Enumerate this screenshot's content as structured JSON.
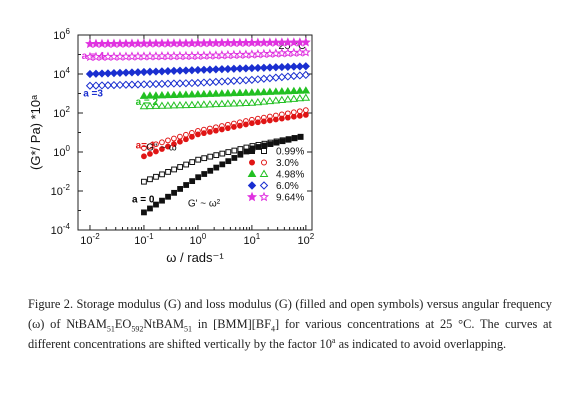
{
  "chart_data": {
    "type": "scatter",
    "xlabel": "ω / rads⁻¹",
    "ylabel": "(G*/ Pa) *10ᵃ",
    "x_scale": "log",
    "y_scale": "log",
    "xlim": [
      0.006,
      130
    ],
    "ylim": [
      0.0001,
      1000000
    ],
    "x_ticks": [
      {
        "value": 0.01,
        "base": "10",
        "exp": "-2"
      },
      {
        "value": 0.1,
        "base": "10",
        "exp": "-1"
      },
      {
        "value": 1,
        "base": "10",
        "exp": "0"
      },
      {
        "value": 10,
        "base": "10",
        "exp": "1"
      },
      {
        "value": 100,
        "base": "10",
        "exp": "2"
      }
    ],
    "y_ticks": [
      {
        "value": 0.0001,
        "base": "10",
        "exp": "-4"
      },
      {
        "value": 0.01,
        "base": "10",
        "exp": "-2"
      },
      {
        "value": 1,
        "base": "10",
        "exp": "0"
      },
      {
        "value": 100,
        "base": "10",
        "exp": "2"
      },
      {
        "value": 10000,
        "base": "10",
        "exp": "4"
      },
      {
        "value": 1000000,
        "base": "10",
        "exp": "6"
      }
    ],
    "temperature_label": "25 °C",
    "slope_labels": {
      "gp": "G\" ~ ω",
      "gpp": "G' ~ ω²"
    },
    "shift_labels": [
      {
        "text": "a = 4",
        "x": 0.007,
        "y": 60000,
        "color": "#e032e0"
      },
      {
        "text": "a =3",
        "x": 0.0075,
        "y": 700,
        "color": "#1a2fd0"
      },
      {
        "text": "a = 2",
        "x": 0.07,
        "y": 250,
        "color": "#22c022"
      },
      {
        "text": "a= 1",
        "x": 0.07,
        "y": 1.5,
        "color": "#e01515"
      },
      {
        "text": "a = 0",
        "x": 0.06,
        "y": 0.0025,
        "color": "#000000"
      }
    ],
    "series": [
      {
        "name": "0.99%",
        "color": "#111111",
        "marker": "square",
        "x_start": 0.1,
        "x_end": 80,
        "gprime": [
          [
            0.1,
            0.0008
          ],
          [
            1,
            0.05
          ],
          [
            10,
            1.5
          ],
          [
            80,
            6
          ]
        ],
        "gdoubleprime": [
          [
            0.1,
            0.03
          ],
          [
            1,
            0.4
          ],
          [
            10,
            2
          ],
          [
            80,
            6
          ]
        ]
      },
      {
        "name": "3.0%",
        "color": "#e01515",
        "marker": "circle",
        "x_start": 0.1,
        "x_end": 100,
        "gprime": [
          [
            0.1,
            0.6
          ],
          [
            1,
            8
          ],
          [
            10,
            30
          ],
          [
            100,
            80
          ]
        ],
        "gdoubleprime": [
          [
            0.1,
            1.6
          ],
          [
            1,
            12
          ],
          [
            10,
            45
          ],
          [
            100,
            140
          ]
        ]
      },
      {
        "name": "4.98%",
        "color": "#22c022",
        "marker": "triangle",
        "x_start": 0.1,
        "x_end": 100,
        "gprime": [
          [
            0.1,
            750
          ],
          [
            1,
            900
          ],
          [
            10,
            1100
          ],
          [
            100,
            1400
          ]
        ],
        "gdoubleprime": [
          [
            0.1,
            220
          ],
          [
            1,
            260
          ],
          [
            10,
            330
          ],
          [
            100,
            600
          ]
        ]
      },
      {
        "name": "6.0%",
        "color": "#1a2fd0",
        "marker": "diamond",
        "x_start": 0.01,
        "x_end": 100,
        "gprime": [
          [
            0.01,
            10000
          ],
          [
            1,
            16000
          ],
          [
            10,
            20000
          ],
          [
            100,
            25000
          ]
        ],
        "gdoubleprime": [
          [
            0.01,
            2500
          ],
          [
            1,
            3500
          ],
          [
            10,
            5000
          ],
          [
            100,
            9000
          ]
        ]
      },
      {
        "name": "9.64%",
        "color": "#e032e0",
        "marker": "star",
        "x_start": 0.01,
        "x_end": 100,
        "gprime": [
          [
            0.01,
            350000
          ],
          [
            1,
            380000
          ],
          [
            10,
            400000
          ],
          [
            100,
            420000
          ]
        ],
        "gdoubleprime": [
          [
            0.01,
            75000
          ],
          [
            1,
            85000
          ],
          [
            10,
            100000
          ],
          [
            100,
            130000
          ]
        ]
      }
    ]
  },
  "caption": {
    "p1": "Figure 2. Storage modulus (G",
    "g1_symbol": "",
    "p2": ") and loss modulus (G",
    "g2_symbol": "",
    "p3": ") (filled and open symbols) versus angular frequency (ω) of NtBAM",
    "sub1": "51",
    "p4": "EO",
    "sub2": "592",
    "p5": "NtBAM",
    "sub3": "51",
    "p6": " in [BM",
    "box_char": "",
    "p7": "M][BF",
    "sub4": "4",
    "p8": "] for various concentrations at 25 °C. The curves at different concentrations are shifted vertically by the factor 10",
    "sup1": "a",
    "p9": " as indicated to avoid overlapping."
  }
}
